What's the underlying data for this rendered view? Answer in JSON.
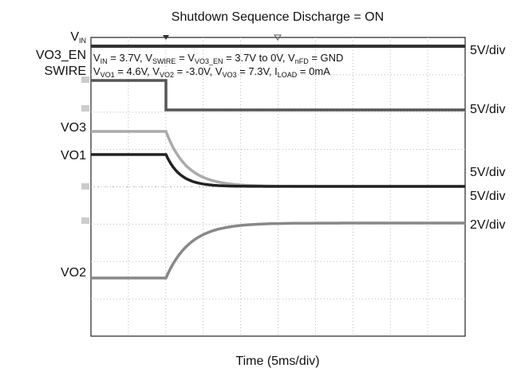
{
  "title": "Shutdown Sequence Discharge = ON",
  "x_label": "Time (5ms/div)",
  "channel_labels": {
    "vin": [
      "V",
      "IN"
    ],
    "vo3_en": "VO3_EN",
    "swire": "SWIRE",
    "vo3": "VO3",
    "vo1": "VO1",
    "vo2": "VO2"
  },
  "scale_labels": [
    "5V/div",
    "5V/div",
    "5V/div",
    "5V/div",
    "2V/div"
  ],
  "annotation_lines": [
    [
      "V",
      "IN",
      " = 3.7V, V",
      "SWIRE",
      " = V",
      "VO3_EN",
      " = 3.7V to 0V, V",
      "nFD",
      " = GND"
    ],
    [
      "V",
      "VO1",
      " = 4.6V, V",
      "VO2",
      " = -3.0V, V",
      "VO3",
      " = 7.3V, I",
      "LOAD",
      " = 0mA"
    ]
  ]
}
